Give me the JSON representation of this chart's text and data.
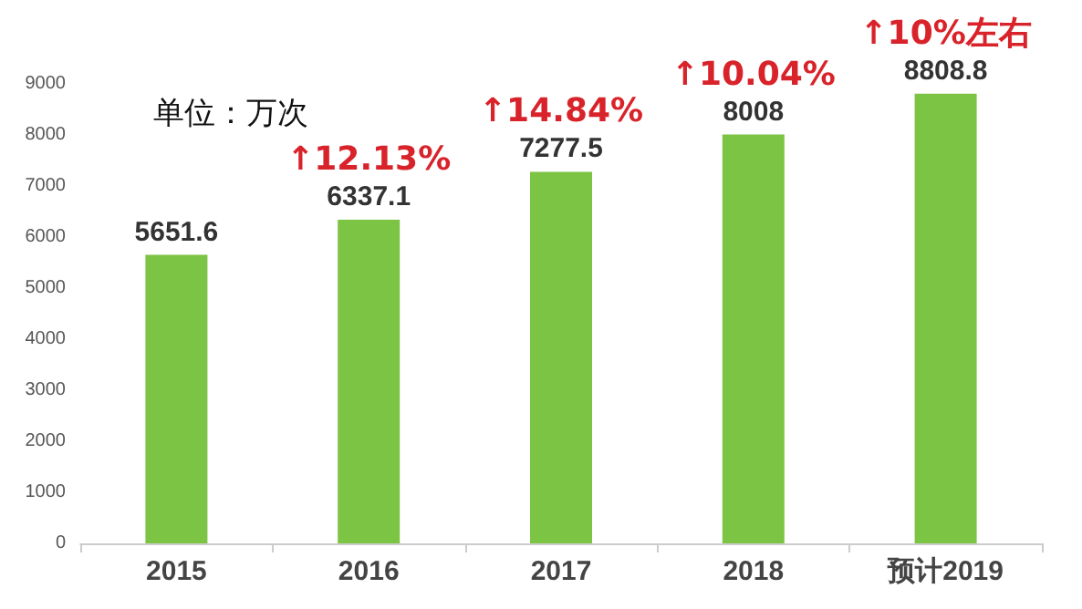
{
  "chart_data": {
    "type": "bar",
    "ylabel": "单位：万次",
    "categories": [
      "2015",
      "2016",
      "2017",
      "2018",
      "预计2019"
    ],
    "values": [
      5651.6,
      6337.1,
      7277.5,
      8008,
      8808.8
    ],
    "color": "#7cc443",
    "ylim": [
      0,
      9000
    ],
    "yticks": [
      0,
      1000,
      2000,
      3000,
      4000,
      5000,
      6000,
      7000,
      8000,
      9000
    ],
    "grid": false,
    "data_labels": true,
    "annotations": [
      {
        "text": "↑12.13%",
        "x": "2016",
        "y": 6337.1
      },
      {
        "text": "↑14.84%",
        "x": "2017",
        "y": 7277.5
      },
      {
        "text": "↑10.04%",
        "x": "2018",
        "y": 8008
      },
      {
        "text": "↑10%左右",
        "x": "预计2019",
        "y": 8808.8
      }
    ]
  }
}
